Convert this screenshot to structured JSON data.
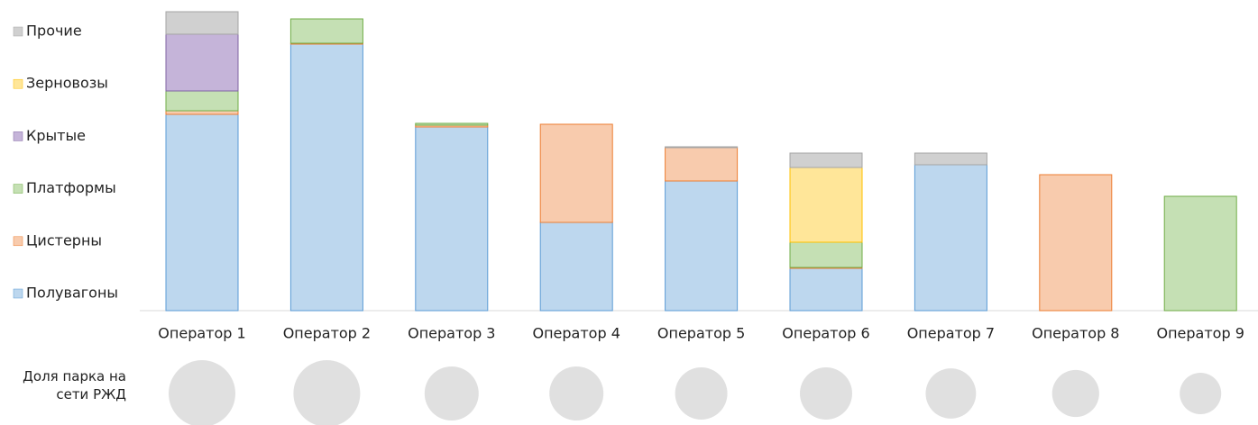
{
  "chart_data": {
    "type": "bar",
    "stacked": true,
    "categories": [
      "Оператор 1",
      "Оператор 2",
      "Оператор 3",
      "Оператор 4",
      "Оператор 5",
      "Оператор 6",
      "Оператор 7",
      "Оператор 8",
      "Оператор 9"
    ],
    "series": [
      {
        "name": "Полувагоны",
        "color": "#bdd7ee",
        "stroke": "#5b9bd5",
        "values": [
          218,
          296,
          204,
          98,
          144,
          47,
          162,
          0,
          0
        ]
      },
      {
        "name": "Цистерны",
        "color": "#f8cbad",
        "stroke": "#ed7d31",
        "values": [
          4,
          1,
          2,
          109,
          37,
          1,
          0,
          151,
          0
        ]
      },
      {
        "name": "Платформы",
        "color": "#c5e0b4",
        "stroke": "#70ad47",
        "values": [
          22,
          27,
          2,
          0,
          0,
          28,
          0,
          0,
          127
        ]
      },
      {
        "name": "Крытые",
        "color": "#c5b4d9",
        "stroke": "#8064a2",
        "values": [
          63,
          0,
          0,
          0,
          0,
          0,
          0,
          0,
          0
        ]
      },
      {
        "name": "Зерновозы",
        "color": "#ffe699",
        "stroke": "#ffc000",
        "values": [
          0,
          0,
          0,
          0,
          0,
          83,
          0,
          0,
          0
        ]
      },
      {
        "name": "Прочие",
        "color": "#d0d0d0",
        "stroke": "#a5a5a5",
        "values": [
          25,
          0,
          0,
          0,
          1,
          16,
          13,
          0,
          0
        ]
      }
    ],
    "share_label": "Доля парка на сети РЖД",
    "share_color": "#e0e0e0",
    "share_values": [
      13.7,
      13.7,
      9,
      9,
      8.4,
      8.4,
      7.8,
      6.8,
      5.3
    ]
  }
}
